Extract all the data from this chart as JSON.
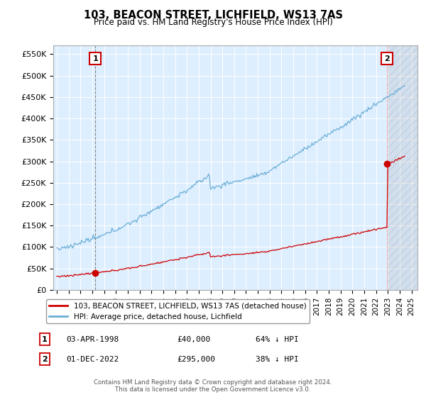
{
  "title": "103, BEACON STREET, LICHFIELD, WS13 7AS",
  "subtitle": "Price paid vs. HM Land Registry's House Price Index (HPI)",
  "ylabel_ticks": [
    "£0",
    "£50K",
    "£100K",
    "£150K",
    "£200K",
    "£250K",
    "£300K",
    "£350K",
    "£400K",
    "£450K",
    "£500K",
    "£550K"
  ],
  "ytick_values": [
    0,
    50000,
    100000,
    150000,
    200000,
    250000,
    300000,
    350000,
    400000,
    450000,
    500000,
    550000
  ],
  "ylim": [
    0,
    570000
  ],
  "xlim_start": 1994.7,
  "xlim_end": 2025.5,
  "hpi_color": "#6baed6",
  "price_color": "#cc0000",
  "vline1_color": "#888888",
  "vline2_color": "#ffaaaa",
  "marker1_x": 1998.25,
  "marker1_y": 40000,
  "marker2_x": 2022.92,
  "marker2_y": 295000,
  "legend_line1": "103, BEACON STREET, LICHFIELD, WS13 7AS (detached house)",
  "legend_line2": "HPI: Average price, detached house, Lichfield",
  "footer": "Contains HM Land Registry data © Crown copyright and database right 2024.\nThis data is licensed under the Open Government Licence v3.0.",
  "background_color": "#ffffff",
  "plot_bg_color": "#ddeeff",
  "grid_color": "#ffffff"
}
